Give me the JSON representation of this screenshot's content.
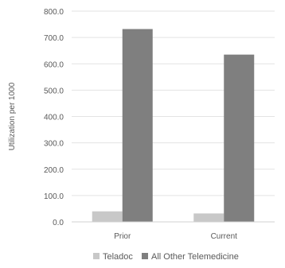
{
  "chart_data": {
    "type": "bar",
    "categories": [
      "Prior",
      "Current"
    ],
    "series": [
      {
        "name": "Teladoc",
        "values": [
          40,
          32
        ],
        "color": "#c8c8c8"
      },
      {
        "name": "All Other Telemedicine",
        "values": [
          732,
          635
        ],
        "color": "#7f7f7f"
      }
    ],
    "ylabel": "Utilization per 1000",
    "ylim": [
      0,
      800
    ],
    "yticks": [
      "0.0",
      "100.0",
      "200.0",
      "300.0",
      "400.0",
      "500.0",
      "600.0",
      "700.0",
      "800.0"
    ],
    "grid": true,
    "legend_position": "bottom"
  }
}
